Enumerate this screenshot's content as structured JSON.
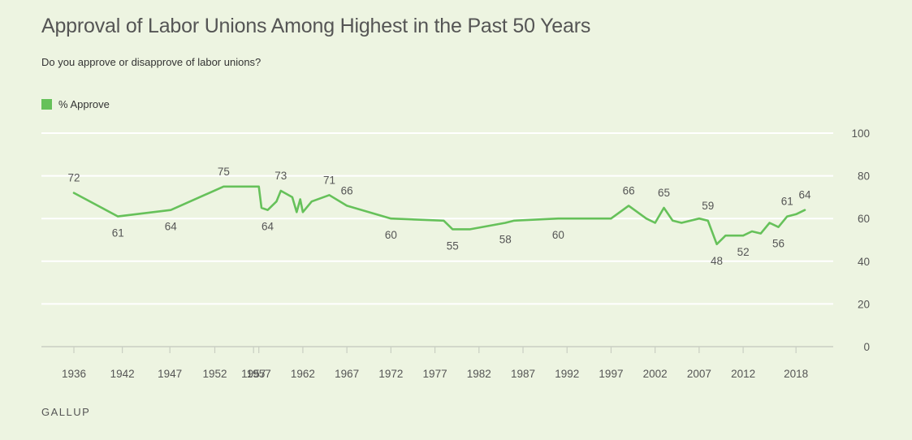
{
  "header": {
    "title": "Approval of Labor Unions Among Highest in the Past 50 Years",
    "subtitle": "Do you approve or disapprove of labor unions?"
  },
  "footer": {
    "brand": "GALLUP"
  },
  "colors": {
    "series": "#66c15a",
    "grid": "#ffffff",
    "axis": "#c9cec2"
  },
  "chart_data": {
    "type": "line",
    "title": "Approval of Labor Unions Among Highest in the Past 50 Years",
    "subtitle": "Do you approve or disapprove of labor unions?",
    "xlabel": "",
    "ylabel": "",
    "ylim": [
      0,
      100
    ],
    "xlim": [
      1934,
      2020.5
    ],
    "yticks": [
      0,
      20,
      40,
      60,
      80,
      100
    ],
    "xticks": [
      {
        "value": 1936,
        "label": "1936"
      },
      {
        "value": 1941.5,
        "label": "1942"
      },
      {
        "value": 1946.9,
        "label": "1947"
      },
      {
        "value": 1952,
        "label": "1952"
      },
      {
        "value": 1956.4,
        "label": "1957"
      },
      {
        "value": 1957,
        "label": "1957"
      },
      {
        "value": 1962,
        "label": "1962"
      },
      {
        "value": 1967,
        "label": "1967"
      },
      {
        "value": 1972,
        "label": "1972"
      },
      {
        "value": 1977,
        "label": "1977"
      },
      {
        "value": 1982,
        "label": "1982"
      },
      {
        "value": 1987,
        "label": "1987"
      },
      {
        "value": 1992,
        "label": "1992"
      },
      {
        "value": 1997,
        "label": "1997"
      },
      {
        "value": 2002,
        "label": "2002"
      },
      {
        "value": 2007,
        "label": "2007"
      },
      {
        "value": 2012,
        "label": "2012"
      },
      {
        "value": 2018,
        "label": "2018"
      }
    ],
    "grid": true,
    "legend": "top-left",
    "series": [
      {
        "name": "% Approve",
        "points": [
          [
            1936,
            72
          ],
          [
            1941,
            61
          ],
          [
            1947,
            64
          ],
          [
            1953,
            75
          ],
          [
            1956,
            75
          ],
          [
            1957,
            75
          ],
          [
            1957.3,
            65
          ],
          [
            1958,
            64
          ],
          [
            1959,
            68
          ],
          [
            1959.5,
            73
          ],
          [
            1960.8,
            70
          ],
          [
            1961.3,
            63
          ],
          [
            1961.7,
            69
          ],
          [
            1962,
            63
          ],
          [
            1963,
            68
          ],
          [
            1965,
            71
          ],
          [
            1967,
            66
          ],
          [
            1972,
            60
          ],
          [
            1978,
            59
          ],
          [
            1979,
            55
          ],
          [
            1981,
            55
          ],
          [
            1985,
            58
          ],
          [
            1986,
            59
          ],
          [
            1991,
            60
          ],
          [
            1997,
            60
          ],
          [
            1999,
            66
          ],
          [
            2001,
            60
          ],
          [
            2002,
            58
          ],
          [
            2003,
            65
          ],
          [
            2004,
            59
          ],
          [
            2005,
            58
          ],
          [
            2007,
            60
          ],
          [
            2008,
            59
          ],
          [
            2009,
            48
          ],
          [
            2010,
            52
          ],
          [
            2012,
            52
          ],
          [
            2013,
            54
          ],
          [
            2014,
            53
          ],
          [
            2015,
            58
          ],
          [
            2016,
            56
          ],
          [
            2017,
            61
          ],
          [
            2018,
            62
          ],
          [
            2019,
            64
          ]
        ]
      }
    ],
    "data_labels": [
      {
        "x": 1936,
        "y": 72,
        "label": "72",
        "pos": "above"
      },
      {
        "x": 1941,
        "y": 61,
        "label": "61",
        "pos": "below"
      },
      {
        "x": 1947,
        "y": 64,
        "label": "64",
        "pos": "below"
      },
      {
        "x": 1953,
        "y": 75,
        "label": "75",
        "pos": "above"
      },
      {
        "x": 1958,
        "y": 64,
        "label": "64",
        "pos": "below"
      },
      {
        "x": 1959.5,
        "y": 73,
        "label": "73",
        "pos": "above"
      },
      {
        "x": 1965,
        "y": 71,
        "label": "71",
        "pos": "above"
      },
      {
        "x": 1967,
        "y": 66,
        "label": "66",
        "pos": "above"
      },
      {
        "x": 1972,
        "y": 60,
        "label": "60",
        "pos": "below"
      },
      {
        "x": 1979,
        "y": 55,
        "label": "55",
        "pos": "below"
      },
      {
        "x": 1985,
        "y": 58,
        "label": "58",
        "pos": "below"
      },
      {
        "x": 1991,
        "y": 60,
        "label": "60",
        "pos": "below"
      },
      {
        "x": 1999,
        "y": 66,
        "label": "66",
        "pos": "above"
      },
      {
        "x": 2003,
        "y": 65,
        "label": "65",
        "pos": "above"
      },
      {
        "x": 2008,
        "y": 59,
        "label": "59",
        "pos": "above"
      },
      {
        "x": 2009,
        "y": 48,
        "label": "48",
        "pos": "below"
      },
      {
        "x": 2012,
        "y": 52,
        "label": "52",
        "pos": "below"
      },
      {
        "x": 2016,
        "y": 56,
        "label": "56",
        "pos": "below"
      },
      {
        "x": 2017,
        "y": 61,
        "label": "61",
        "pos": "above"
      },
      {
        "x": 2019,
        "y": 64,
        "label": "64",
        "pos": "above"
      }
    ]
  }
}
